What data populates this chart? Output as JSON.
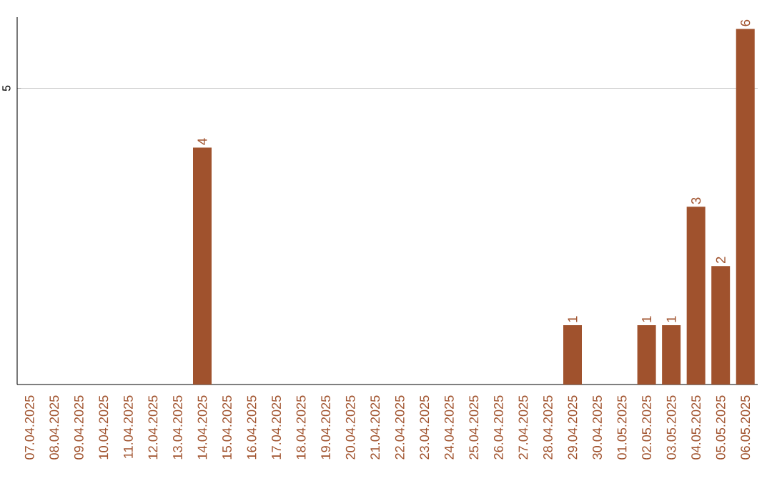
{
  "chart_data": {
    "type": "bar",
    "categories": [
      "07.04.2025",
      "08.04.2025",
      "09.04.2025",
      "10.04.2025",
      "11.04.2025",
      "12.04.2025",
      "13.04.2025",
      "14.04.2025",
      "15.04.2025",
      "16.04.2025",
      "17.04.2025",
      "18.04.2025",
      "19.04.2025",
      "20.04.2025",
      "21.04.2025",
      "22.04.2025",
      "23.04.2025",
      "24.04.2025",
      "25.04.2025",
      "26.04.2025",
      "27.04.2025",
      "28.04.2025",
      "29.04.2025",
      "30.04.2025",
      "01.05.2025",
      "02.05.2025",
      "03.05.2025",
      "04.05.2025",
      "05.05.2025",
      "06.05.2025"
    ],
    "values": [
      0,
      0,
      0,
      0,
      0,
      0,
      0,
      4,
      0,
      0,
      0,
      0,
      0,
      0,
      0,
      0,
      0,
      0,
      0,
      0,
      0,
      0,
      1,
      0,
      0,
      1,
      1,
      3,
      2,
      6
    ],
    "value_labels": [
      null,
      null,
      null,
      null,
      null,
      null,
      null,
      "4",
      null,
      null,
      null,
      null,
      null,
      null,
      null,
      null,
      null,
      null,
      null,
      null,
      null,
      null,
      "1",
      null,
      null,
      "1",
      "1",
      "3",
      "2",
      "6"
    ],
    "color": "#a0522d",
    "ylim": [
      0,
      6.2
    ],
    "yticks": [
      5
    ],
    "grid": "y"
  }
}
